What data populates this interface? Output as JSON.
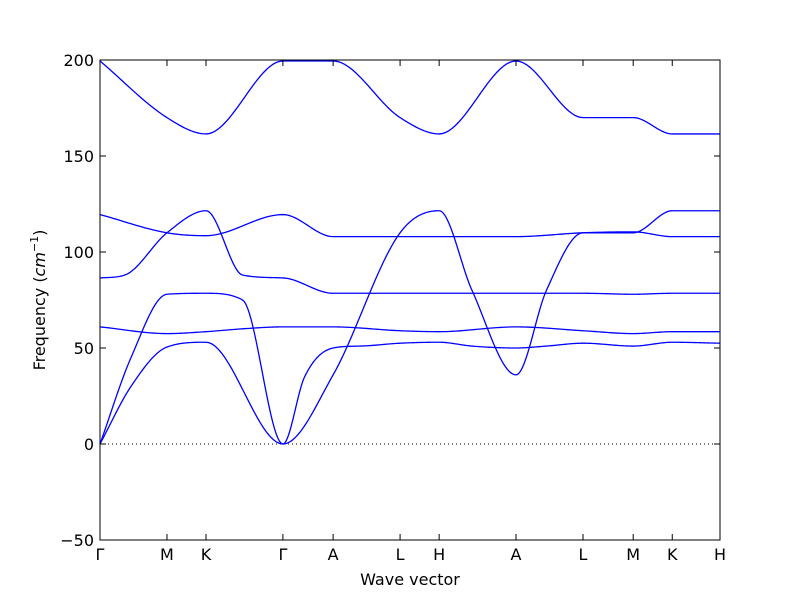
{
  "chart_data": {
    "type": "line",
    "title": "",
    "xlabel": "Wave vector",
    "ylabel_prefix": "Frequency (",
    "ylabel_unit_base": "cm",
    "ylabel_unit_exp": "−1",
    "ylabel_suffix": ")",
    "ylim": [
      -50,
      200
    ],
    "xlim": [
      0,
      1
    ],
    "yticks": [
      -50,
      0,
      50,
      100,
      150,
      200
    ],
    "ytick_labels": [
      "−50",
      "0",
      "50",
      "100",
      "150",
      "200"
    ],
    "xticks": [
      {
        "label": "Γ",
        "x": 0.0
      },
      {
        "label": "M",
        "x": 0.108
      },
      {
        "label": "K",
        "x": 0.171
      },
      {
        "label": "Γ",
        "x": 0.295
      },
      {
        "label": "A",
        "x": 0.376
      },
      {
        "label": "L",
        "x": 0.484
      },
      {
        "label": "H",
        "x": 0.547
      },
      {
        "label": "A",
        "x": 0.671
      },
      {
        "label": "L",
        "x": 0.779
      },
      {
        "label": "M",
        "x": 0.86
      },
      {
        "label": "K",
        "x": 0.923
      },
      {
        "label": "H",
        "x": 1.0
      }
    ],
    "zero_line": true,
    "grid": false,
    "line_color": "#0000ff",
    "series": [
      {
        "x": [
          0,
          0.05,
          0.108,
          0.171,
          0.23,
          0.295,
          0.376,
          0.484,
          0.547,
          0.6,
          0.671,
          0.72,
          0.779,
          0.86,
          0.923,
          1.0
        ],
        "y": [
          0,
          45,
          78,
          78.5,
          75,
          0,
          36,
          110,
          121.5,
          80,
          36,
          80,
          110,
          110,
          121.5,
          121.5
        ]
      },
      {
        "x": [
          0,
          0.05,
          0.108,
          0.171,
          0.295,
          0.33,
          0.376,
          0.42,
          0.484,
          0.547,
          0.6,
          0.671,
          0.72,
          0.779,
          0.86,
          0.923,
          1.0
        ],
        "y": [
          0,
          30,
          50.5,
          53,
          0,
          35,
          50,
          51,
          52.5,
          53,
          51,
          50,
          51,
          52.5,
          51,
          53,
          52.5
        ]
      },
      {
        "x": [
          0,
          0.108,
          0.171,
          0.23,
          0.295,
          0.376,
          0.484,
          0.547,
          0.671,
          0.779,
          0.86,
          0.923,
          1.0
        ],
        "y": [
          61,
          57.5,
          58.5,
          60,
          61,
          61,
          59,
          58.5,
          61,
          59,
          57.5,
          58.5,
          58.5
        ]
      },
      {
        "x": [
          0,
          0.04,
          0.108,
          0.171,
          0.23,
          0.295,
          0.376,
          0.484,
          0.547,
          0.671,
          0.779,
          0.86,
          0.923,
          1.0
        ],
        "y": [
          86.5,
          88,
          110,
          121.5,
          88,
          86.5,
          78.5,
          78.5,
          78.5,
          78.5,
          78.5,
          78,
          78.5,
          78.5
        ]
      },
      {
        "x": [
          0,
          0.108,
          0.171,
          0.295,
          0.376,
          0.484,
          0.547,
          0.671,
          0.779,
          0.86,
          0.923,
          1.0
        ],
        "y": [
          119.5,
          110,
          108.5,
          119.5,
          108,
          108,
          108,
          108,
          110,
          110.5,
          108,
          108
        ]
      },
      {
        "x": [
          0,
          0.108,
          0.171,
          0.295,
          0.376,
          0.484,
          0.547,
          0.671,
          0.779,
          0.86,
          0.923,
          1.0
        ],
        "y": [
          199.5,
          170,
          161.5,
          199.5,
          199.5,
          170,
          161.5,
          199.5,
          170,
          170,
          161.5,
          161.5
        ]
      }
    ]
  }
}
